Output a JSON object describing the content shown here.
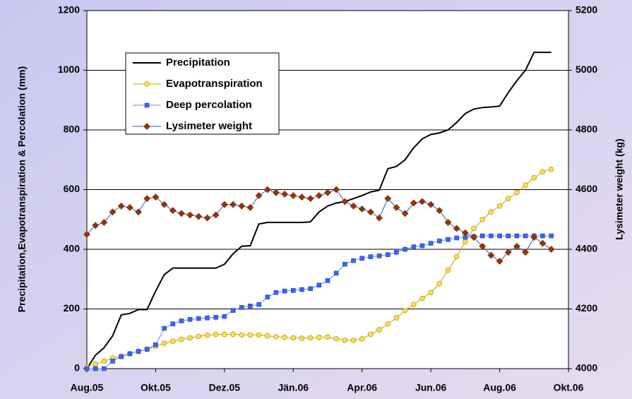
{
  "chart_data": {
    "type": "line",
    "ylabel": "Precipitation,Evapotranspiration & Percolation (mm)",
    "y2label": "Lysimeter weight (kg)",
    "x": [
      0,
      0.25,
      0.5,
      0.75,
      1,
      1.25,
      1.5,
      1.75,
      2,
      2.25,
      2.5,
      2.75,
      3,
      3.25,
      3.5,
      3.75,
      4,
      4.25,
      4.5,
      4.75,
      5,
      5.25,
      5.5,
      5.75,
      6,
      6.25,
      6.5,
      6.75,
      7,
      7.25,
      7.5,
      7.75,
      8,
      8.25,
      8.5,
      8.75,
      9,
      9.25,
      9.5,
      9.75,
      10,
      10.25,
      10.5,
      10.75,
      11,
      11.25,
      11.5,
      11.75,
      12,
      12.25,
      12.5,
      12.75,
      13,
      13.25,
      13.5
    ],
    "xlim": [
      0,
      14
    ],
    "xticks": [
      {
        "value": 0,
        "label": "Aug.05"
      },
      {
        "value": 2,
        "label": "Okt.05"
      },
      {
        "value": 4,
        "label": "Dez.05"
      },
      {
        "value": 6,
        "label": "Jän.06"
      },
      {
        "value": 8,
        "label": "Apr.06"
      },
      {
        "value": 10,
        "label": "Jun.06"
      },
      {
        "value": 12,
        "label": "Aug.06"
      },
      {
        "value": 14,
        "label": "Okt.06"
      }
    ],
    "ylim": [
      0,
      1200
    ],
    "yticks": [
      0,
      200,
      400,
      600,
      800,
      1000,
      1200
    ],
    "y2lim": [
      4000,
      5200
    ],
    "y2ticks": [
      4000,
      4200,
      4400,
      4600,
      4800,
      5000,
      5200
    ],
    "grid": true,
    "series": [
      {
        "name": "Precipitation",
        "color": "#000000",
        "marker": null,
        "marker_color": null,
        "values": [
          0,
          45,
          70,
          110,
          180,
          185,
          198,
          198,
          260,
          315,
          337,
          337,
          337,
          337,
          337,
          337,
          350,
          385,
          410,
          412,
          485,
          490,
          490,
          490,
          490,
          490,
          492,
          525,
          545,
          555,
          560,
          570,
          580,
          592,
          598,
          670,
          678,
          700,
          740,
          770,
          785,
          790,
          800,
          825,
          855,
          870,
          875,
          877,
          880,
          925,
          965,
          1000,
          1060,
          1060,
          1060
        ]
      },
      {
        "name": "Evapotranspiration",
        "color": "#c8a000",
        "marker": "circle",
        "marker_color": "#ffdd44",
        "values": [
          5,
          15,
          25,
          35,
          42,
          50,
          58,
          65,
          75,
          85,
          92,
          98,
          103,
          108,
          112,
          115,
          115,
          115,
          113,
          113,
          113,
          110,
          107,
          105,
          103,
          102,
          103,
          105,
          106,
          100,
          95,
          95,
          100,
          115,
          130,
          150,
          170,
          195,
          215,
          235,
          255,
          285,
          330,
          375,
          425,
          470,
          500,
          525,
          545,
          570,
          590,
          615,
          640,
          660,
          668
        ]
      },
      {
        "name": "Deep percolation",
        "color": "#6688dd",
        "marker": "square",
        "marker_color": "#3366ff",
        "values": [
          0,
          0,
          0,
          25,
          40,
          50,
          58,
          65,
          80,
          135,
          150,
          160,
          165,
          168,
          170,
          172,
          175,
          195,
          205,
          210,
          215,
          240,
          255,
          260,
          262,
          265,
          268,
          280,
          295,
          320,
          350,
          362,
          370,
          375,
          378,
          382,
          390,
          400,
          408,
          412,
          420,
          428,
          433,
          438,
          440,
          443,
          445,
          445,
          445,
          445,
          445,
          445,
          445,
          445,
          445
        ]
      },
      {
        "name": "Lysimeter weight",
        "color": "#3355cc",
        "marker": "diamond",
        "marker_color": "#993300",
        "axis": "y2",
        "values": [
          4450,
          4480,
          4490,
          4525,
          4545,
          4540,
          4525,
          4570,
          4575,
          4550,
          4530,
          4520,
          4515,
          4510,
          4505,
          4515,
          4550,
          4550,
          4545,
          4540,
          4580,
          4600,
          4590,
          4585,
          4580,
          4575,
          4570,
          4580,
          4590,
          4600,
          4560,
          4545,
          4535,
          4525,
          4505,
          4570,
          4540,
          4520,
          4555,
          4560,
          4550,
          4530,
          4490,
          4470,
          4455,
          4440,
          4410,
          4380,
          4360,
          4390,
          4410,
          4390,
          4440,
          4420,
          4400
        ]
      }
    ]
  }
}
